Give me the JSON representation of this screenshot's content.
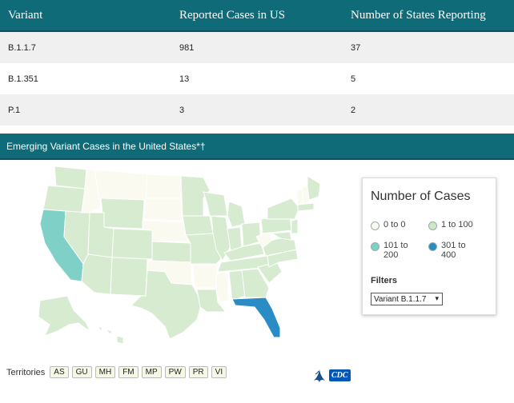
{
  "table": {
    "headers": [
      "Variant",
      "Reported Cases in US",
      "Number of States Reporting"
    ],
    "rows": [
      {
        "variant": "B.1.1.7",
        "cases": "981",
        "states": "37"
      },
      {
        "variant": "B.1.351",
        "cases": "13",
        "states": "5"
      },
      {
        "variant": "P.1",
        "cases": "3",
        "states": "2"
      }
    ]
  },
  "section": {
    "title": "Emerging Variant Cases in the United States*†"
  },
  "legend": {
    "title": "Number of Cases",
    "items": [
      {
        "label": "0 to 0",
        "color": "#fafaf0"
      },
      {
        "label": "1 to 100",
        "color": "#cde8c4"
      },
      {
        "label": "101 to 200",
        "color": "#7fd0c6"
      },
      {
        "label": "301 to 400",
        "color": "#2a8cc4"
      }
    ],
    "filters_label": "Filters",
    "filter_value": "Variant B.1.1.7"
  },
  "territories": {
    "label": "Territories",
    "items": [
      "AS",
      "GU",
      "MH",
      "FM",
      "MP",
      "PW",
      "PR",
      "VI"
    ]
  },
  "logo": {
    "text": "CDC"
  },
  "colors": {
    "header_bg": "#0f6b78",
    "row_alt": "#f0f0f0",
    "state_default": "#d6ebcf",
    "state_empty": "#fafaf0",
    "california": "#7fd0c6",
    "florida": "#2a8cc4"
  }
}
